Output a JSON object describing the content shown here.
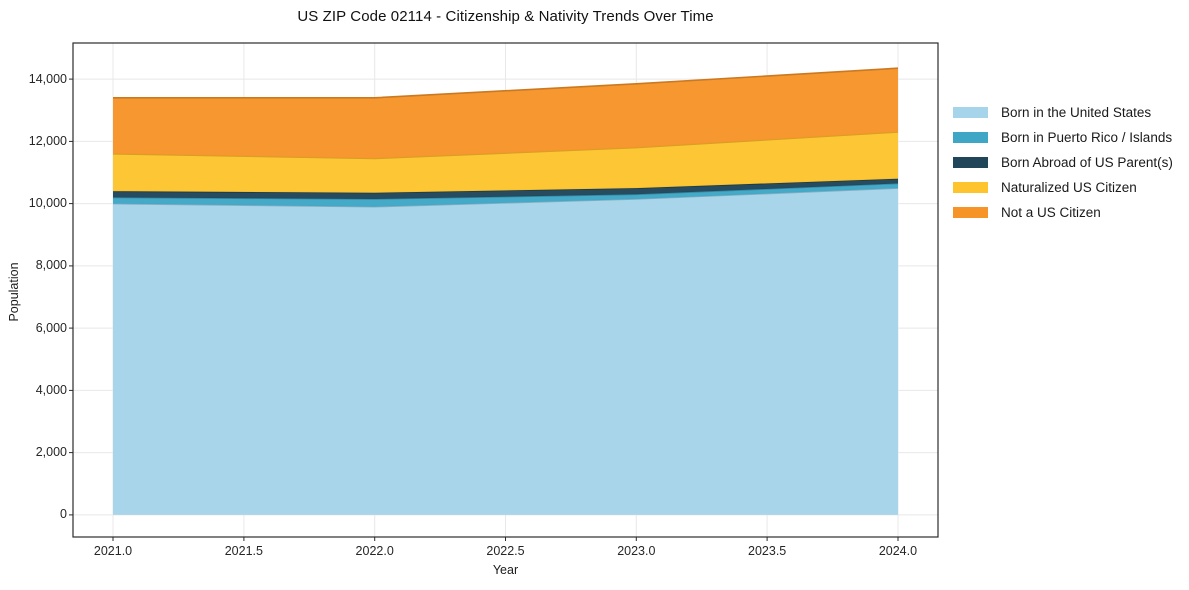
{
  "title": "US ZIP Code 02114 - Citizenship & Nativity Trends Over Time",
  "chart_data": {
    "type": "area",
    "stacked": true,
    "title": "US ZIP Code 02114 - Citizenship & Nativity Trends Over Time",
    "xlabel": "Year",
    "ylabel": "Population",
    "x": [
      2021,
      2022,
      2023,
      2024
    ],
    "series": [
      {
        "name": "Born in the United States",
        "color": "#a6d4ea",
        "values": [
          10000,
          9900,
          10150,
          10500
        ]
      },
      {
        "name": "Born in Puerto Rico / Islands",
        "color": "#3fa6c6",
        "values": [
          200,
          250,
          150,
          150
        ]
      },
      {
        "name": "Born Abroad of US Parent(s)",
        "color": "#21465a",
        "values": [
          200,
          200,
          200,
          150
        ]
      },
      {
        "name": "Naturalized US Citizen",
        "color": "#fdc42e",
        "values": [
          1200,
          1100,
          1300,
          1500
        ]
      },
      {
        "name": "Not a US Citizen",
        "color": "#f79428",
        "values": [
          1800,
          1950,
          2050,
          2050
        ]
      }
    ],
    "stack_totals": [
      13400,
      13400,
      13850,
      14350
    ],
    "xticks": {
      "values": [
        2021.0,
        2021.5,
        2022.0,
        2022.5,
        2023.0,
        2023.5,
        2024.0
      ],
      "labels": [
        "2021.0",
        "2021.5",
        "2022.0",
        "2022.5",
        "2023.0",
        "2023.5",
        "2024.0"
      ]
    },
    "yticks": {
      "values": [
        0,
        2000,
        4000,
        6000,
        8000,
        10000,
        12000,
        14000
      ],
      "labels": [
        "0",
        "2,000",
        "4,000",
        "6,000",
        "8,000",
        "10,000",
        "12,000",
        "14,000"
      ]
    },
    "xlim": [
      2020.847,
      2024.153
    ],
    "ylim": [
      -710,
      15160
    ],
    "grid": true,
    "legend_position": "right"
  },
  "colors": {
    "background": "#ffffff",
    "grid": "#e8e8e8",
    "spine": "#2b2b2b",
    "tick": "#2b2b2b"
  }
}
